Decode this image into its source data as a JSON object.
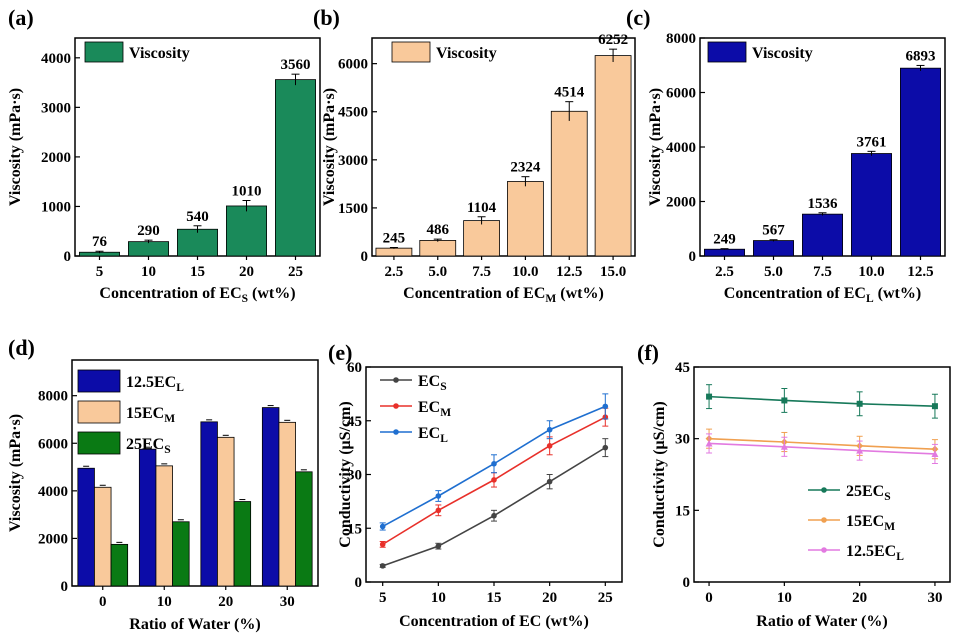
{
  "colors": {
    "green": "#1a8a5a",
    "peach": "#f9c99b",
    "blue": "#0c0ca8",
    "darkgreen": "#0a7a14",
    "black": "#444444",
    "red": "#e8302a",
    "lineblue": "#1f6fd0",
    "teal": "#17795a",
    "orange": "#f0a050",
    "pink": "#e27ae0"
  },
  "chart_data": [
    {
      "id": "a",
      "panel_label": "(a)",
      "type": "bar",
      "categories": [
        "5",
        "10",
        "15",
        "20",
        "25"
      ],
      "values": [
        76,
        290,
        540,
        1010,
        3560
      ],
      "errors": [
        20,
        30,
        70,
        110,
        110
      ],
      "data_labels": [
        "76",
        "290",
        "540",
        "1010",
        "3560"
      ],
      "yticks": [
        "0",
        "1000",
        "2000",
        "3000",
        "4000"
      ],
      "ylim": [
        0,
        4400
      ],
      "ylabel": "Viscosity (mPa·s)",
      "xlabel_main": "Concentration of EC",
      "xlabel_sub": "S",
      "xlabel_tail": " (wt%)",
      "legend": "Viscosity",
      "color": "green"
    },
    {
      "id": "b",
      "panel_label": "(b)",
      "type": "bar",
      "categories": [
        "2.5",
        "5.0",
        "7.5",
        "10.0",
        "12.5",
        "15.0"
      ],
      "values": [
        245,
        486,
        1104,
        2324,
        4514,
        6252
      ],
      "errors": [
        20,
        40,
        120,
        150,
        300,
        200
      ],
      "data_labels": [
        "245",
        "486",
        "1104",
        "2324",
        "4514",
        "6252"
      ],
      "yticks": [
        "0",
        "1500",
        "3000",
        "4500",
        "6000"
      ],
      "ylim": [
        0,
        6800
      ],
      "ylabel": "Viscosity (mPa·s)",
      "xlabel_main": "Concentration of EC",
      "xlabel_sub": "M",
      "xlabel_tail": " (wt%)",
      "legend": "Viscosity",
      "color": "peach"
    },
    {
      "id": "c",
      "panel_label": "(c)",
      "type": "bar",
      "categories": [
        "2.5",
        "5.0",
        "7.5",
        "10.0",
        "12.5"
      ],
      "values": [
        249,
        567,
        1536,
        3761,
        6893
      ],
      "errors": [
        20,
        30,
        50,
        80,
        100
      ],
      "data_labels": [
        "249",
        "567",
        "1536",
        "3761",
        "6893"
      ],
      "yticks": [
        "0",
        "2000",
        "4000",
        "6000",
        "8000"
      ],
      "ylim": [
        0,
        8000
      ],
      "ylabel": "Viscosity (mPa·s)",
      "xlabel_main": "Concentration of EC",
      "xlabel_sub": "L",
      "xlabel_tail": " (wt%)",
      "legend": "Viscosity",
      "color": "blue"
    },
    {
      "id": "d",
      "panel_label": "(d)",
      "type": "bar",
      "categories": [
        "0",
        "10",
        "20",
        "30"
      ],
      "series": [
        {
          "name_main": "12.5EC",
          "name_sub": "L",
          "values": [
            4950,
            5750,
            6900,
            7500
          ],
          "color": "blue"
        },
        {
          "name_main": "15EC",
          "name_sub": "M",
          "values": [
            4150,
            5050,
            6250,
            6880
          ],
          "color": "peach"
        },
        {
          "name_main": "25EC",
          "name_sub": "S",
          "values": [
            1750,
            2700,
            3550,
            4800
          ],
          "color": "darkgreen"
        }
      ],
      "yticks": [
        "0",
        "2000",
        "4000",
        "6000",
        "8000"
      ],
      "ylim": [
        0,
        9500
      ],
      "ylabel": "Viscosity (mPa·s)",
      "xlabel": "Ratio of Water (%)"
    },
    {
      "id": "e",
      "panel_label": "(e)",
      "type": "line",
      "x": [
        5,
        10,
        15,
        20,
        25
      ],
      "xticks": [
        "5",
        "10",
        "15",
        "20",
        "25"
      ],
      "series": [
        {
          "name_main": "EC",
          "name_sub": "S",
          "values": [
            4.5,
            10,
            18.5,
            28,
            37.5
          ],
          "errors": [
            0.4,
            0.8,
            1.5,
            2,
            2.5
          ],
          "color": "black"
        },
        {
          "name_main": "EC",
          "name_sub": "M",
          "values": [
            10.5,
            20,
            28.5,
            38,
            46
          ],
          "errors": [
            0.8,
            1.5,
            2,
            2.5,
            2.5
          ],
          "color": "red"
        },
        {
          "name_main": "EC",
          "name_sub": "L",
          "values": [
            15.5,
            24,
            33,
            42.5,
            49
          ],
          "errors": [
            1,
            1.5,
            2.5,
            2.5,
            3.5
          ],
          "color": "lineblue"
        }
      ],
      "yticks": [
        "0",
        "15",
        "30",
        "45",
        "60"
      ],
      "ylim": [
        0,
        60
      ],
      "ylabel_main": "Conductivity (",
      "ylabel_unit": "μS/cm",
      "ylabel_tail": ")",
      "xlabel": "Concentration of EC (wt%)"
    },
    {
      "id": "f",
      "panel_label": "(f)",
      "type": "line",
      "x": [
        0,
        10,
        20,
        30
      ],
      "xticks": [
        "0",
        "10",
        "20",
        "30"
      ],
      "series": [
        {
          "name_main": "25EC",
          "name_sub": "S",
          "values": [
            38.8,
            38,
            37.3,
            36.8
          ],
          "errors": [
            2.5,
            2.5,
            2.5,
            2.5
          ],
          "color": "teal"
        },
        {
          "name_main": "15EC",
          "name_sub": "M",
          "values": [
            30,
            29.3,
            28.5,
            27.8
          ],
          "errors": [
            2,
            2,
            2,
            2
          ],
          "color": "orange"
        },
        {
          "name_main": "12.5EC",
          "name_sub": "L",
          "values": [
            29,
            28.3,
            27.5,
            26.8
          ],
          "errors": [
            2,
            2,
            2,
            2
          ],
          "color": "pink"
        }
      ],
      "yticks": [
        "0",
        "15",
        "30",
        "45"
      ],
      "ylim": [
        0,
        45
      ],
      "ylabel_main": "Conductivity (",
      "ylabel_unit": "μS/cm",
      "ylabel_tail": ")",
      "xlabel": "Ratio of Water (%)"
    }
  ]
}
